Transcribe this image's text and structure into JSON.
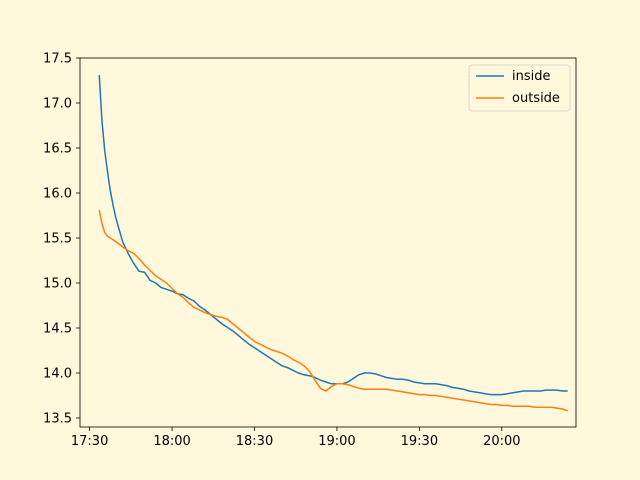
{
  "chart_data": {
    "type": "line",
    "title": "",
    "xlabel": "",
    "ylabel": "",
    "xlim": [
      -3.5,
      177
    ],
    "ylim": [
      13.4,
      17.5
    ],
    "xticks": [
      0,
      30,
      60,
      90,
      120,
      150
    ],
    "xtick_labels": [
      "17:30",
      "18:00",
      "18:30",
      "19:00",
      "19:30",
      "20:00"
    ],
    "yticks": [
      13.5,
      14.0,
      14.5,
      15.0,
      15.5,
      16.0,
      16.5,
      17.0,
      17.5
    ],
    "ytick_labels": [
      "13.5",
      "14.0",
      "14.5",
      "15.0",
      "15.5",
      "16.0",
      "16.5",
      "17.0",
      "17.5"
    ],
    "legend_position": "top-right",
    "colors": {
      "inside": "#1f77b4",
      "outside": "#ff7f0e"
    },
    "series": [
      {
        "name": "inside",
        "x": [
          3.5,
          4.5,
          5.5,
          6.5,
          7.5,
          8.5,
          9.5,
          10.5,
          12,
          14,
          16,
          18,
          20,
          22,
          24,
          26,
          28,
          30,
          32,
          34,
          36,
          38,
          40,
          42,
          44,
          46,
          48,
          50,
          52,
          54,
          56,
          58,
          60,
          62,
          64,
          66,
          68,
          70,
          72,
          74,
          76,
          78,
          80,
          82,
          84,
          86,
          88,
          90,
          92,
          94,
          96,
          98,
          100,
          102,
          104,
          106,
          108,
          110,
          112,
          114,
          116,
          118,
          120,
          122,
          124,
          126,
          128,
          130,
          132,
          134,
          136,
          138,
          140,
          142,
          144,
          146,
          148,
          150,
          152,
          154,
          156,
          158,
          160,
          162,
          164,
          166,
          168,
          170,
          172,
          174
        ],
        "y": [
          17.31,
          16.8,
          16.47,
          16.24,
          16.03,
          15.87,
          15.73,
          15.62,
          15.46,
          15.33,
          15.22,
          15.13,
          15.12,
          15.03,
          15.0,
          14.95,
          14.93,
          14.91,
          14.88,
          14.87,
          14.83,
          14.8,
          14.74,
          14.7,
          14.65,
          14.6,
          14.55,
          14.51,
          14.47,
          14.42,
          14.37,
          14.32,
          14.28,
          14.24,
          14.2,
          14.16,
          14.12,
          14.08,
          14.06,
          14.03,
          14.0,
          13.98,
          13.97,
          13.95,
          13.92,
          13.9,
          13.88,
          13.88,
          13.88,
          13.9,
          13.94,
          13.98,
          14.0,
          14.0,
          13.99,
          13.97,
          13.95,
          13.94,
          13.93,
          13.93,
          13.92,
          13.9,
          13.89,
          13.88,
          13.88,
          13.88,
          13.87,
          13.86,
          13.84,
          13.83,
          13.82,
          13.8,
          13.79,
          13.78,
          13.77,
          13.76,
          13.76,
          13.76,
          13.77,
          13.78,
          13.79,
          13.8,
          13.8,
          13.8,
          13.8,
          13.81,
          13.81,
          13.81,
          13.8,
          13.8
        ]
      },
      {
        "name": "outside",
        "x": [
          3.5,
          4.5,
          5.5,
          6.5,
          7.5,
          8.5,
          9.5,
          10.5,
          12,
          14,
          16,
          18,
          20,
          22,
          24,
          26,
          28,
          30,
          32,
          34,
          36,
          38,
          40,
          42,
          44,
          46,
          48,
          50,
          52,
          54,
          56,
          58,
          60,
          62,
          64,
          66,
          68,
          70,
          72,
          74,
          76,
          78,
          80,
          82,
          84,
          86,
          88,
          90,
          92,
          94,
          96,
          98,
          100,
          102,
          104,
          106,
          108,
          110,
          112,
          114,
          116,
          118,
          120,
          122,
          124,
          126,
          128,
          130,
          132,
          134,
          136,
          138,
          140,
          142,
          144,
          146,
          148,
          150,
          152,
          154,
          156,
          158,
          160,
          162,
          164,
          166,
          168,
          170,
          172,
          174
        ],
        "y": [
          15.81,
          15.66,
          15.56,
          15.52,
          15.5,
          15.48,
          15.46,
          15.44,
          15.4,
          15.36,
          15.33,
          15.27,
          15.2,
          15.14,
          15.08,
          15.04,
          15.0,
          14.94,
          14.88,
          14.84,
          14.78,
          14.73,
          14.7,
          14.67,
          14.65,
          14.63,
          14.62,
          14.6,
          14.55,
          14.5,
          14.45,
          14.4,
          14.35,
          14.32,
          14.29,
          14.26,
          14.24,
          14.22,
          14.19,
          14.15,
          14.12,
          14.08,
          14.02,
          13.92,
          13.83,
          13.8,
          13.85,
          13.88,
          13.88,
          13.87,
          13.85,
          13.83,
          13.82,
          13.82,
          13.82,
          13.82,
          13.82,
          13.81,
          13.8,
          13.79,
          13.78,
          13.77,
          13.76,
          13.76,
          13.75,
          13.75,
          13.74,
          13.73,
          13.72,
          13.71,
          13.7,
          13.69,
          13.68,
          13.67,
          13.66,
          13.65,
          13.65,
          13.64,
          13.64,
          13.63,
          13.63,
          13.63,
          13.63,
          13.62,
          13.62,
          13.62,
          13.62,
          13.61,
          13.6,
          13.58
        ]
      }
    ]
  }
}
